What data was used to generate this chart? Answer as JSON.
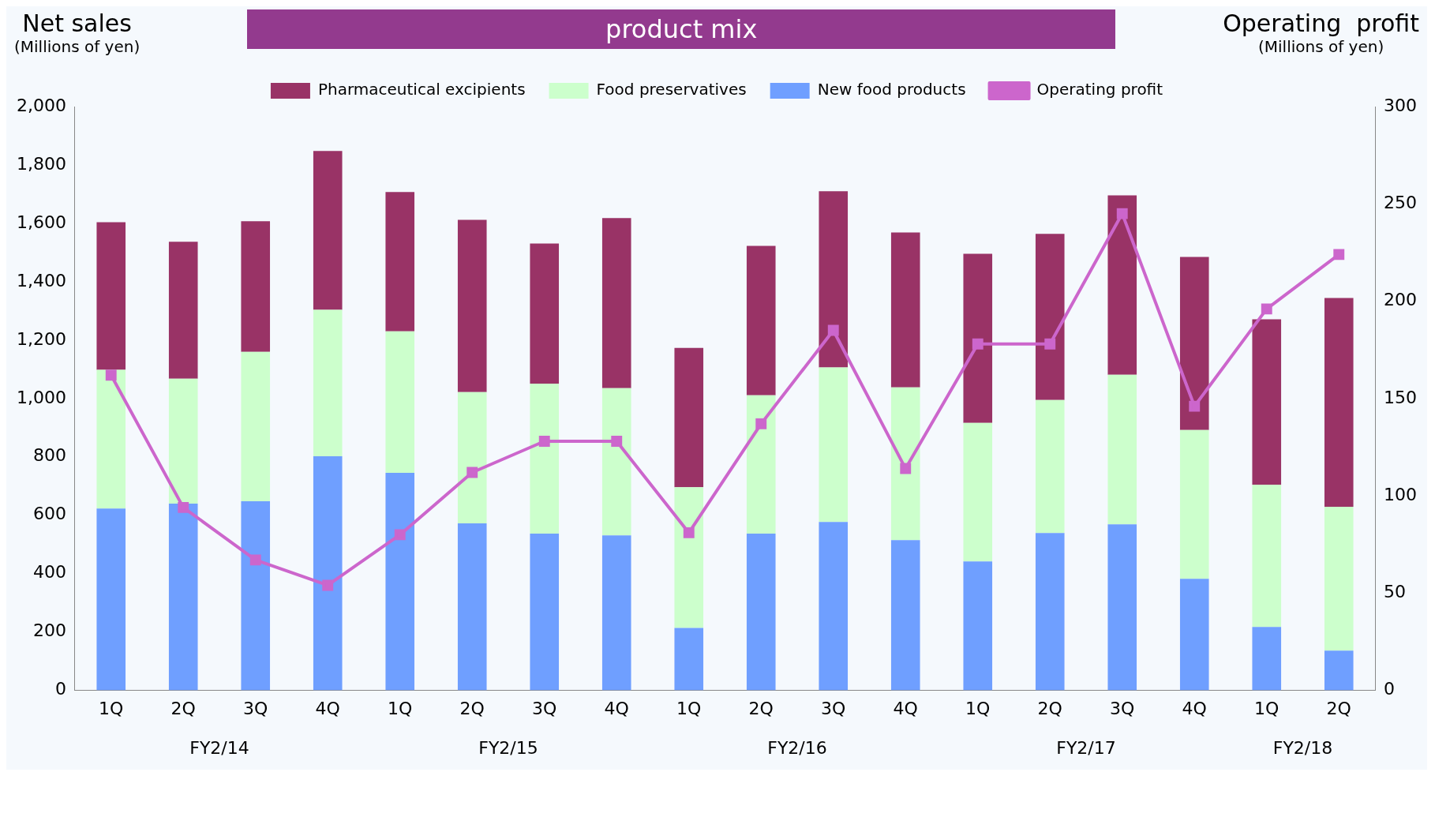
{
  "chart_data": {
    "type": "bar",
    "title": "product mix",
    "ylabel": "Net sales",
    "y2label": "Operating  profit",
    "annotations": [
      "(Millions of yen)",
      "(Millions of yen)",
      "FY2/14",
      "FY2/15",
      "FY2/16",
      "FY2/17",
      "FY2/18"
    ],
    "categories": [
      "1Q",
      "2Q",
      "3Q",
      "4Q",
      "1Q",
      "2Q",
      "3Q",
      "4Q",
      "1Q",
      "2Q",
      "3Q",
      "4Q",
      "1Q",
      "2Q",
      "3Q",
      "4Q",
      "1Q",
      "2Q"
    ],
    "stacked": true,
    "legend": "top",
    "grid": false,
    "ylim": [
      0,
      2000
    ],
    "yticks": [
      0,
      200,
      400,
      600,
      800,
      {
        "value": 1000,
        "label": "1,000"
      },
      {
        "value": 1200,
        "label": "1,200"
      },
      {
        "value": 1400,
        "label": "1,400"
      },
      {
        "value": 1600,
        "label": "1,600"
      },
      {
        "value": 1800,
        "label": "1,800"
      },
      {
        "value": 2000,
        "label": "2,000"
      }
    ],
    "y2lim": [
      0,
      300
    ],
    "y2ticks": [
      0,
      50,
      100,
      150,
      200,
      250,
      300
    ],
    "series": [
      {
        "name": "New food products",
        "color": "#6f9fff",
        "values": [
          623,
          640,
          648,
          802,
          745,
          572,
          537,
          531,
          214,
          537,
          577,
          515,
          442,
          539,
          569,
          382,
          217,
          136
        ]
      },
      {
        "name": "Food preservatives",
        "color": "#ccffcc",
        "values": [
          475,
          428,
          512,
          502,
          485,
          450,
          514,
          504,
          482,
          474,
          529,
          523,
          474,
          456,
          512,
          510,
          488,
          493
        ]
      },
      {
        "name": "Pharmaceutical excipients",
        "color": "#993366",
        "values": [
          506,
          469,
          447,
          544,
          477,
          590,
          480,
          583,
          477,
          512,
          604,
          531,
          580,
          569,
          615,
          593,
          566,
          715
        ]
      },
      {
        "name": "Operating profit",
        "type": "line",
        "axis": "y2",
        "color": "#cc66cc",
        "marker": "square",
        "values": [
          162,
          94,
          67,
          54,
          80,
          112,
          128,
          128,
          81,
          137,
          185,
          114,
          178,
          178,
          245,
          146,
          196,
          224
        ]
      }
    ]
  }
}
